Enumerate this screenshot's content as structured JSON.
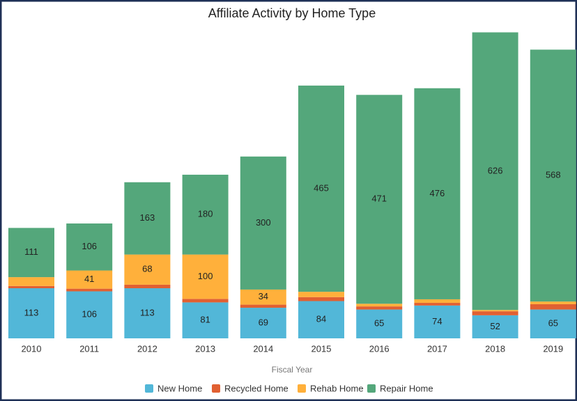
{
  "chart_data": {
    "type": "stacked_bar",
    "title": "Affiliate Activity by Home Type",
    "x_label": "Fiscal Year",
    "categories": [
      "2010",
      "2011",
      "2012",
      "2013",
      "2014",
      "2015",
      "2016",
      "2017",
      "2018",
      "2019"
    ],
    "series": [
      {
        "name": "New Home",
        "color": "#52b7d8",
        "values": [
          113,
          106,
          113,
          81,
          69,
          84,
          65,
          74,
          52,
          65
        ]
      },
      {
        "name": "Recycled Home",
        "color": "#e16032",
        "values": [
          5,
          6,
          8,
          8,
          7,
          9,
          7,
          6,
          9,
          12
        ]
      },
      {
        "name": "Rehab Home",
        "color": "#ffb03b",
        "values": [
          20,
          41,
          68,
          100,
          34,
          12,
          6,
          8,
          3,
          6
        ]
      },
      {
        "name": "Repair Home",
        "color": "#54a77b",
        "values": [
          111,
          106,
          163,
          180,
          300,
          465,
          471,
          476,
          626,
          568
        ]
      }
    ],
    "legend": "bottom"
  }
}
